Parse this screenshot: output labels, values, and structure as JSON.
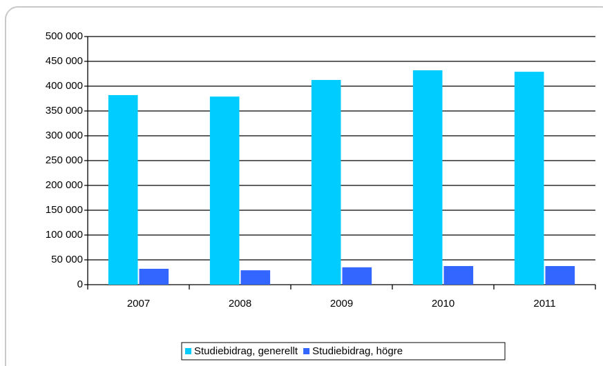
{
  "chart_data": {
    "type": "bar",
    "categories": [
      "2007",
      "2008",
      "2009",
      "2010",
      "2011"
    ],
    "series": [
      {
        "name": "Studiebidrag, generellt",
        "color": "#00ccff",
        "values": [
          382000,
          379000,
          412500,
          432000,
          429000
        ]
      },
      {
        "name": "Studiebidrag, högre",
        "color": "#3366ff",
        "values": [
          32000,
          29000,
          35000,
          37500,
          37500
        ]
      }
    ],
    "ylim": [
      0,
      500000
    ],
    "yticks": [
      0,
      {
        "value": 50000,
        "label": "50 000"
      },
      {
        "value": 100000,
        "label": "100 000"
      },
      {
        "value": 150000,
        "label": "150 000"
      },
      {
        "value": 200000,
        "label": "200 000"
      },
      {
        "value": 250000,
        "label": "250 000"
      },
      {
        "value": 300000,
        "label": "300 000"
      },
      {
        "value": 350000,
        "label": "350 000"
      },
      {
        "value": 400000,
        "label": "400 000"
      },
      {
        "value": 450000,
        "label": "450 000"
      },
      {
        "value": 500000,
        "label": "500 000"
      }
    ],
    "grid": true,
    "legend": "bottom"
  }
}
